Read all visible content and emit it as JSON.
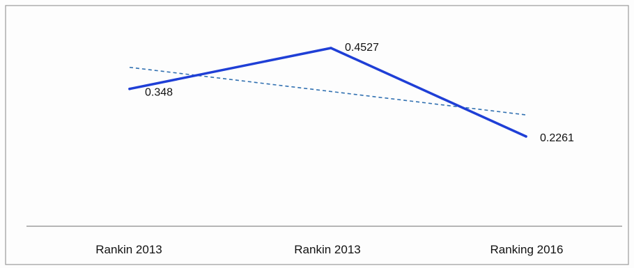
{
  "chart_data": {
    "type": "line",
    "categories": [
      "Rankin 2013",
      "Rankin 2013",
      "Ranking 2016"
    ],
    "series": [
      {
        "values": [
          0.348,
          0.4527,
          0.2261
        ],
        "labels": [
          "0.348",
          "0.4527",
          "0.2261"
        ]
      }
    ],
    "trendline": {
      "type": "linear",
      "style": "dashed"
    },
    "title": "",
    "xlabel": "",
    "ylabel": "",
    "grid": false,
    "legend": "none",
    "colors": {
      "series": "#1f3fd6",
      "trendline": "#2f6fb0"
    }
  }
}
